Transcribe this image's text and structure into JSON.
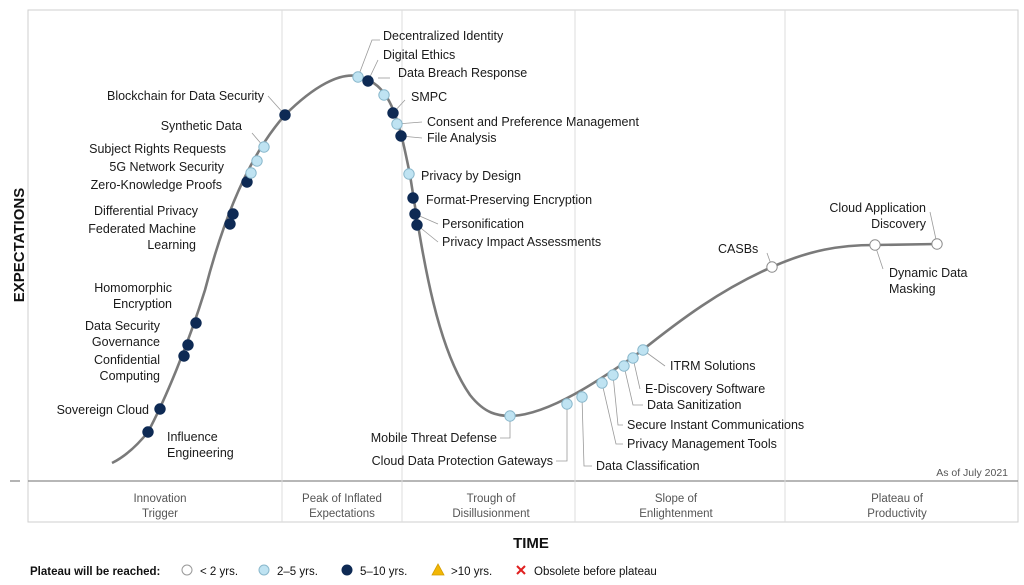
{
  "chart": {
    "y_axis_title": "EXPECTATIONS",
    "x_axis_title": "TIME",
    "as_of": "As of July 2021",
    "phases": [
      [
        "Innovation",
        "Trigger"
      ],
      [
        "Peak of Inflated",
        "Expectations"
      ],
      [
        "Trough of",
        "Disillusionment"
      ],
      [
        "Slope of",
        "Enlightenment"
      ],
      [
        "Plateau of",
        "Productivity"
      ]
    ]
  },
  "legend": {
    "title": "Plateau will be reached:",
    "items": [
      {
        "marker": "circle",
        "color": "#ffffff",
        "stroke": "#999999",
        "label": "< 2 yrs."
      },
      {
        "marker": "circle",
        "color": "#bfe3f2",
        "stroke": "#8ab8cc",
        "label": "2–5 yrs."
      },
      {
        "marker": "circle",
        "color": "#0e2a54",
        "stroke": "#0e2a54",
        "label": "5–10 yrs."
      },
      {
        "marker": "triangle",
        "color": "#f2b705",
        "stroke": "#d49d00",
        "label": ">10 yrs."
      },
      {
        "marker": "x",
        "color": "#e02020",
        "stroke": "#e02020",
        "label": "Obsolete before plateau"
      }
    ]
  },
  "colors": {
    "lt2": "#ffffff",
    "2to5": "#bfe3f2",
    "5to10": "#0e2a54",
    "curve": "#7a7a7a"
  },
  "technologies": [
    {
      "name": "Influence Engineering",
      "lines": [
        "Influence",
        "Engineering"
      ],
      "cat": "5to10"
    },
    {
      "name": "Sovereign Cloud",
      "lines": [
        "Sovereign Cloud"
      ],
      "cat": "5to10"
    },
    {
      "name": "Confidential Computing",
      "lines": [
        "Confidential",
        "Computing"
      ],
      "cat": "5to10"
    },
    {
      "name": "Data Security Governance",
      "lines": [
        "Data Security",
        "Governance"
      ],
      "cat": "5to10"
    },
    {
      "name": "Homomorphic Encryption",
      "lines": [
        "Homomorphic",
        "Encryption"
      ],
      "cat": "5to10"
    },
    {
      "name": "Federated Machine Learning",
      "lines": [
        "Federated Machine",
        "Learning"
      ],
      "cat": "5to10"
    },
    {
      "name": "Differential Privacy",
      "lines": [
        "Differential Privacy"
      ],
      "cat": "5to10"
    },
    {
      "name": "Zero-Knowledge Proofs",
      "lines": [
        "Zero-Knowledge Proofs"
      ],
      "cat": "5to10"
    },
    {
      "name": "5G Network Security",
      "lines": [
        "5G Network Security"
      ],
      "cat": "2to5"
    },
    {
      "name": "Subject Rights Requests",
      "lines": [
        "Subject Rights Requests"
      ],
      "cat": "2to5"
    },
    {
      "name": "Synthetic Data",
      "lines": [
        "Synthetic Data"
      ],
      "cat": "2to5"
    },
    {
      "name": "Blockchain for Data Security",
      "lines": [
        "Blockchain for Data Security"
      ],
      "cat": "5to10"
    },
    {
      "name": "Decentralized Identity",
      "lines": [
        "Decentralized Identity"
      ],
      "cat": "2to5"
    },
    {
      "name": "Digital Ethics",
      "lines": [
        "Digital Ethics"
      ],
      "cat": "5to10"
    },
    {
      "name": "Data Breach Response",
      "lines": [
        "Data Breach Response"
      ],
      "cat": "2to5"
    },
    {
      "name": "SMPC",
      "lines": [
        "SMPC"
      ],
      "cat": "5to10"
    },
    {
      "name": "Consent and Preference Management",
      "lines": [
        "Consent and Preference Management"
      ],
      "cat": "2to5"
    },
    {
      "name": "File Analysis",
      "lines": [
        "File Analysis"
      ],
      "cat": "5to10"
    },
    {
      "name": "Privacy by Design",
      "lines": [
        "Privacy by Design"
      ],
      "cat": "2to5"
    },
    {
      "name": "Format-Preserving Encryption",
      "lines": [
        "Format-Preserving Encryption"
      ],
      "cat": "5to10"
    },
    {
      "name": "Personification",
      "lines": [
        "Personification"
      ],
      "cat": "5to10"
    },
    {
      "name": "Privacy Impact Assessments",
      "lines": [
        "Privacy Impact Assessments"
      ],
      "cat": "5to10"
    },
    {
      "name": "Mobile Threat Defense",
      "lines": [
        "Mobile Threat Defense"
      ],
      "cat": "2to5"
    },
    {
      "name": "Cloud Data Protection Gateways",
      "lines": [
        "Cloud Data Protection Gateways"
      ],
      "cat": "2to5"
    },
    {
      "name": "Data Classification",
      "lines": [
        "Data Classification"
      ],
      "cat": "2to5"
    },
    {
      "name": "Privacy Management Tools",
      "lines": [
        "Privacy Management Tools"
      ],
      "cat": "2to5"
    },
    {
      "name": "Secure Instant Communications",
      "lines": [
        "Secure Instant Communications"
      ],
      "cat": "2to5"
    },
    {
      "name": "Data Sanitization",
      "lines": [
        "Data Sanitization"
      ],
      "cat": "2to5"
    },
    {
      "name": "E-Discovery Software",
      "lines": [
        "E-Discovery Software"
      ],
      "cat": "2to5"
    },
    {
      "name": "ITRM Solutions",
      "lines": [
        "ITRM Solutions"
      ],
      "cat": "2to5"
    },
    {
      "name": "CASBs",
      "lines": [
        "CASBs"
      ],
      "cat": "lt2"
    },
    {
      "name": "Dynamic Data Masking",
      "lines": [
        "Dynamic Data",
        "Masking"
      ],
      "cat": "lt2"
    },
    {
      "name": "Cloud Application Discovery",
      "lines": [
        "Cloud Application",
        "Discovery"
      ],
      "cat": "lt2"
    }
  ]
}
